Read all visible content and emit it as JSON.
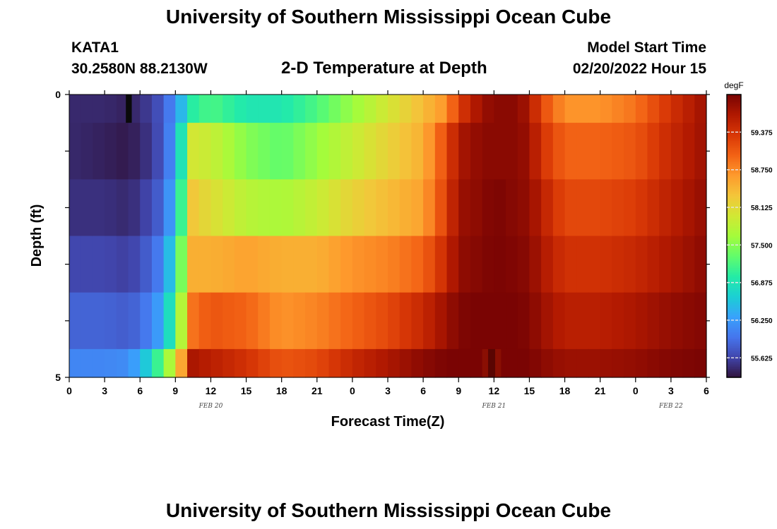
{
  "page": {
    "title": "University of Southern Mississippi Ocean Cube",
    "footer_title": "University of Southern Mississippi Ocean Cube"
  },
  "header": {
    "station": "KATA1",
    "coords": "30.2580N  88.2130W",
    "subtitle": "2-D Temperature at Depth",
    "model_start_label": "Model Start Time",
    "model_start_value": "02/20/2022 Hour 15"
  },
  "chart_data": {
    "type": "heatmap",
    "title": "2-D Temperature at Depth",
    "xlabel": "Forecast Time(Z)",
    "ylabel": "Depth (ft)",
    "xlim_hours": [
      0,
      54
    ],
    "ylim": [
      0,
      5
    ],
    "x_ticks": [
      "0",
      "3",
      "6",
      "9",
      "12",
      "15",
      "18",
      "21",
      "0",
      "3",
      "6",
      "9",
      "12",
      "15",
      "18",
      "21",
      "0",
      "3",
      "6"
    ],
    "x_tick_hours": [
      0,
      3,
      6,
      9,
      12,
      15,
      18,
      21,
      24,
      27,
      30,
      33,
      36,
      39,
      42,
      45,
      48,
      51,
      54
    ],
    "y_tick_labels": [
      "0",
      "5"
    ],
    "y_tick_depths": [
      0,
      1,
      2,
      3,
      4,
      5
    ],
    "date_labels": [
      {
        "text": "FEB 20",
        "hour": 12
      },
      {
        "text": "FEB 21",
        "hour": 36
      },
      {
        "text": "FEB 22",
        "hour": 51
      }
    ],
    "colorbar": {
      "unit": "degF",
      "ticks": [
        55.625,
        56.25,
        56.875,
        57.5,
        58.125,
        58.75,
        59.375
      ],
      "tick_labels": [
        "55.625",
        "56.250",
        "56.875",
        "57.500",
        "58.125",
        "58.750",
        "59.375"
      ],
      "min": 55.3,
      "max": 60.0,
      "colors": [
        "#30123b",
        "#4145ab",
        "#4675ed",
        "#39a2fc",
        "#1bcfd4",
        "#24eca6",
        "#61fc6c",
        "#a4fc3b",
        "#d1e834",
        "#f3c63a",
        "#fe9b2d",
        "#f36315",
        "#d93806",
        "#b11901",
        "#7a0403"
      ]
    },
    "depth_bands": [
      0,
      0.5,
      1.5,
      2.5,
      3.5,
      4.5,
      5
    ],
    "time_knots_hours": [
      0,
      3,
      5,
      6,
      7,
      8,
      9,
      10.5,
      12,
      15,
      18,
      21,
      24,
      27,
      30,
      32,
      33,
      35,
      36,
      38,
      39,
      40,
      42,
      45,
      48,
      51,
      54
    ],
    "temperature_degF": [
      [
        55.45,
        55.45,
        55.4,
        55.5,
        55.6,
        55.8,
        56.2,
        57.0,
        57.2,
        56.9,
        56.9,
        57.2,
        57.6,
        58.0,
        58.4,
        58.7,
        59.3,
        59.8,
        59.9,
        59.9,
        59.7,
        59.2,
        58.7,
        58.7,
        58.9,
        59.4,
        59.8
      ],
      [
        55.45,
        55.4,
        55.35,
        55.45,
        55.55,
        55.8,
        56.3,
        58.0,
        57.9,
        57.5,
        57.3,
        57.6,
        57.9,
        58.2,
        58.5,
        59.2,
        59.7,
        59.9,
        59.9,
        59.9,
        59.8,
        59.4,
        59.0,
        59.0,
        59.1,
        59.5,
        59.8
      ],
      [
        55.5,
        55.5,
        55.45,
        55.55,
        55.7,
        55.9,
        56.5,
        58.3,
        58.1,
        57.8,
        57.7,
        57.9,
        58.2,
        58.4,
        58.6,
        59.3,
        59.8,
        59.9,
        60.0,
        59.9,
        59.85,
        59.6,
        59.2,
        59.2,
        59.3,
        59.6,
        59.85
      ],
      [
        55.65,
        55.65,
        55.6,
        55.7,
        55.9,
        56.1,
        56.9,
        58.5,
        58.5,
        58.6,
        58.5,
        58.5,
        58.7,
        58.8,
        59.0,
        59.5,
        59.85,
        59.95,
        60.0,
        59.95,
        59.9,
        59.7,
        59.4,
        59.4,
        59.5,
        59.7,
        59.9
      ],
      [
        55.85,
        55.85,
        55.8,
        55.9,
        56.1,
        56.4,
        57.2,
        58.9,
        59.1,
        59.0,
        58.7,
        58.8,
        59.0,
        59.2,
        59.5,
        59.8,
        59.95,
        60.05,
        60.1,
        60.0,
        59.95,
        59.8,
        59.6,
        59.6,
        59.7,
        59.85,
        59.95
      ],
      [
        56.1,
        56.1,
        56.15,
        56.4,
        56.8,
        57.4,
        58.0,
        59.7,
        59.6,
        59.4,
        59.1,
        59.2,
        59.5,
        59.7,
        59.9,
        60.0,
        60.05,
        60.15,
        60.2,
        60.1,
        60.0,
        59.9,
        59.8,
        59.8,
        59.85,
        59.95,
        60.0
      ]
    ],
    "bad_cells": [
      {
        "hour_start": 4.8,
        "hour_end": 5.3,
        "depth_start": 0,
        "depth_end": 0.5,
        "color": "#0a0a0a"
      },
      {
        "hour_start": 35.5,
        "hour_end": 36.1,
        "depth_start": 4.5,
        "depth_end": 5,
        "color": "#5a0502"
      },
      {
        "hour_start": 35.0,
        "hour_end": 36.6,
        "depth_start": 4.5,
        "depth_end": 5,
        "color": "#8a0f03"
      }
    ]
  }
}
